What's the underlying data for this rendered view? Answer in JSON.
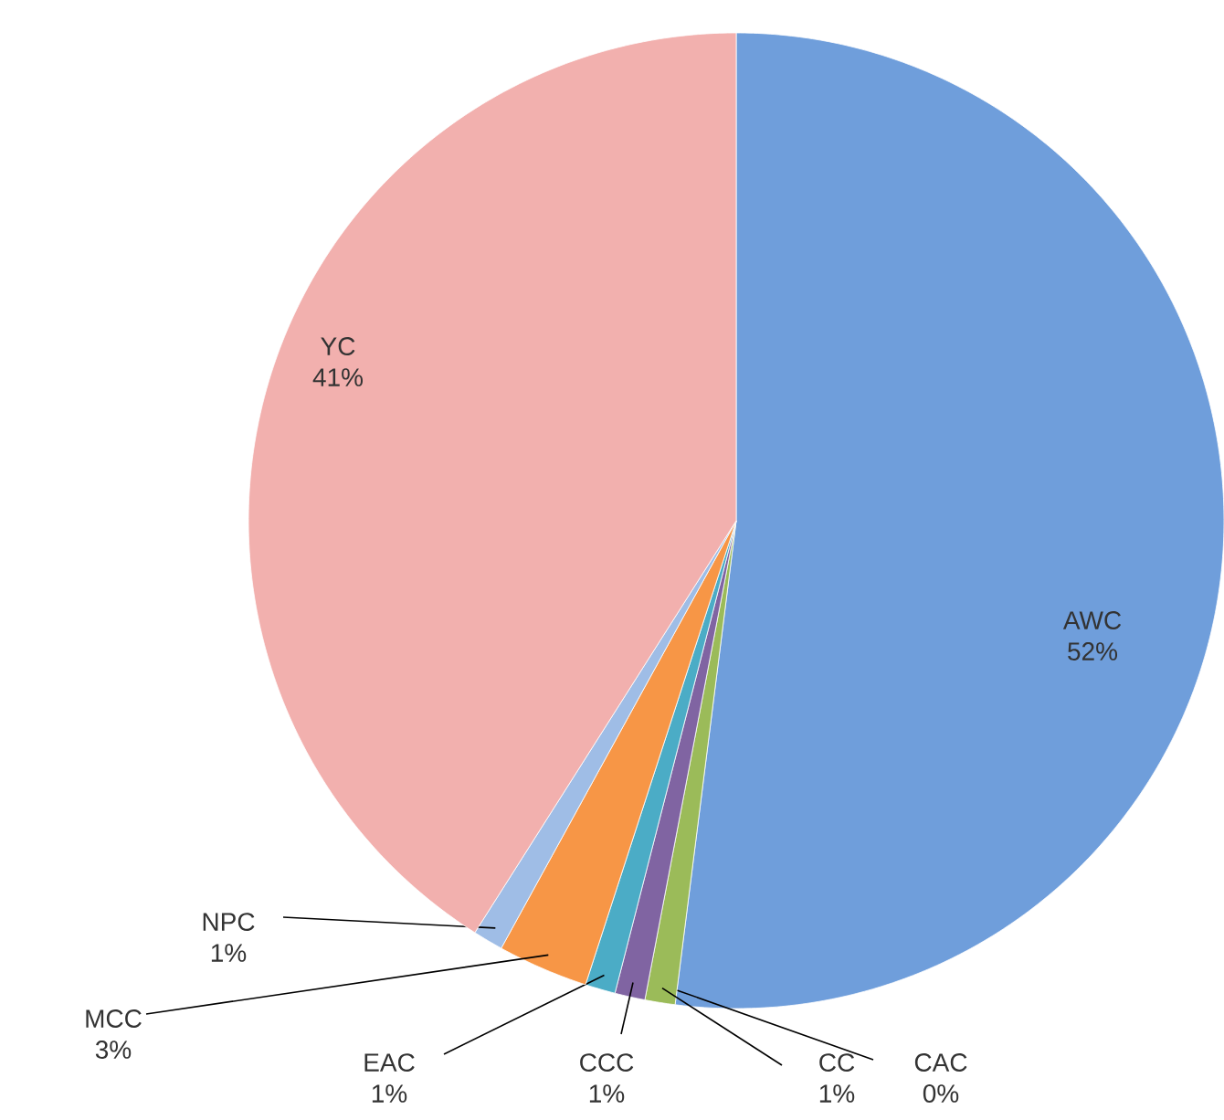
{
  "chart_data": {
    "type": "pie",
    "categories": [
      "AWC",
      "CAC",
      "CC",
      "CCC",
      "EAC",
      "MCC",
      "NPC",
      "YC"
    ],
    "values": [
      52,
      0,
      1,
      1,
      1,
      3,
      1,
      41
    ],
    "value_labels": [
      "52%",
      "0%",
      "1%",
      "1%",
      "1%",
      "3%",
      "1%",
      "41%"
    ],
    "colors": [
      "#6f9edb",
      "#c0504d",
      "#9bbb59",
      "#8064a2",
      "#4bacc6",
      "#f79646",
      "#9fbde6",
      "#f2b0ae"
    ]
  }
}
